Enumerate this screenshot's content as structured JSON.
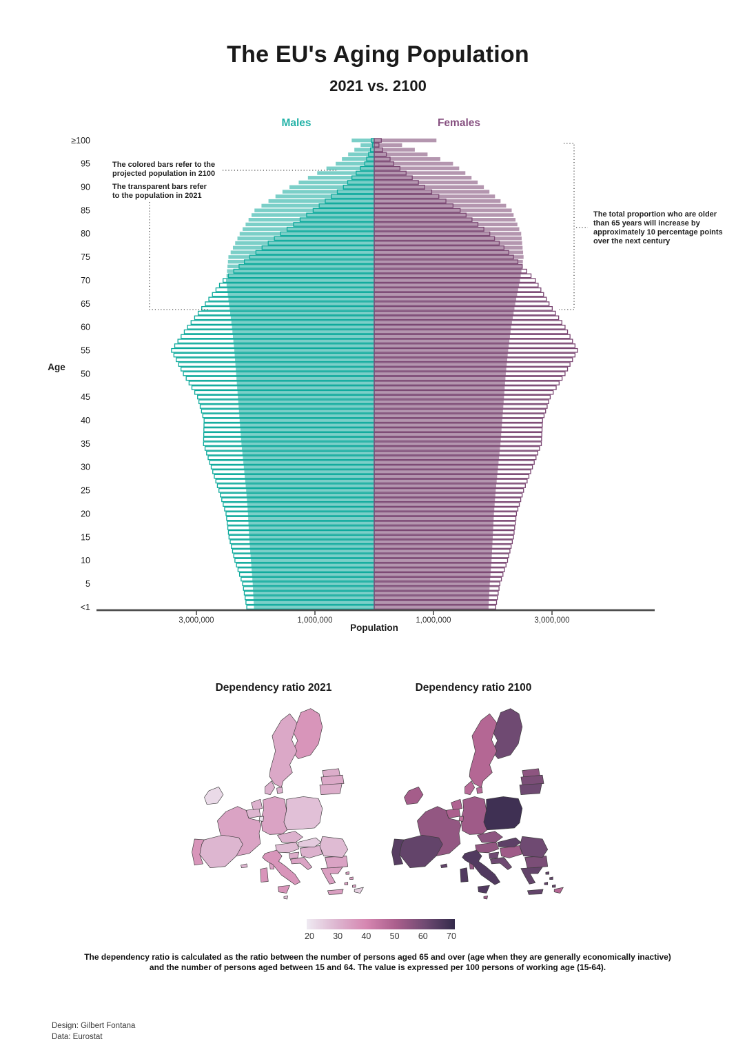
{
  "title": "The EU's Aging Population",
  "subtitle": "2021 vs. 2100",
  "pyramid": {
    "males_label": "Males",
    "females_label": "Females",
    "age_axis_label": "Age",
    "x_axis_label": "Population",
    "age_tick_labels": [
      "≥100",
      "95",
      "90",
      "85",
      "80",
      "75",
      "70",
      "65",
      "60",
      "55",
      "50",
      "45",
      "40",
      "35",
      "30",
      "25",
      "20",
      "15",
      "10",
      "5",
      "<1"
    ],
    "x_tick_labels": [
      "3,000,000",
      "1,000,000",
      "1,000,000",
      "3,000,000"
    ],
    "annotation_colored": "The colored bars refer to the\nprojected population in 2100",
    "annotation_transparent": "The transparent bars refer\nto the population in 2021",
    "annotation_over65": "The total proportion who are older\nthan 65 years will increase by\napproximately 10 percentage points\nover the next century"
  },
  "maps": {
    "title_2021": "Dependency ratio 2021",
    "title_2100": "Dependency ratio 2100"
  },
  "legend": {
    "tick_labels": [
      "20",
      "30",
      "40",
      "50",
      "60",
      "70"
    ]
  },
  "footnote": "The dependency ratio is calculated as the ratio between the number of persons aged 65 and over (age when they are generally economically inactive)\nand the number of persons aged between 15 and 64. The value is expressed per 100 persons of working age (15-64).",
  "credits": {
    "design": "Design: Gilbert Fontana",
    "data": "Data: Eurostat"
  },
  "colors": {
    "male_accent": "#23b2a7",
    "male_outline": "#0ba99b",
    "male_fill": "rgba(14,168,155,0.55)",
    "female_accent": "#865080",
    "female_outline": "#7a4672",
    "female_fill": "rgba(125,74,117,0.58)",
    "axis": "#4d4d4d",
    "annotation_line": "#444444",
    "colorbar_stops": [
      {
        "value": 20,
        "color": "#efeaf2"
      },
      {
        "value": 30,
        "color": "#ddb6d0"
      },
      {
        "value": 40,
        "color": "#d687b1"
      },
      {
        "value": 50,
        "color": "#ab5f8d"
      },
      {
        "value": 60,
        "color": "#6f4a72"
      },
      {
        "value": 70,
        "color": "#332a4b"
      }
    ]
  },
  "chart_data": [
    {
      "type": "bar",
      "subtype": "population_pyramid",
      "title": "EU population by single year of age and sex, 2021 vs. projected 2100",
      "unit": "persons (millions), read from axis where 1 tick = 1,000,000",
      "xlabel": "Population",
      "ylabel": "Age",
      "x_ticks_millions": [
        -3,
        -1,
        1,
        3
      ],
      "age_range": [
        "<1",
        "≥100 (open-ended top bin)"
      ],
      "age_anchors": [
        0,
        5,
        10,
        15,
        20,
        25,
        30,
        35,
        40,
        45,
        50,
        55,
        60,
        65,
        70,
        75,
        80,
        85,
        90,
        95,
        99,
        100
      ],
      "series": [
        {
          "name": "Males 2021",
          "side": "male",
          "year": 2021,
          "style": "outline",
          "values_millions": [
            2.15,
            2.22,
            2.35,
            2.45,
            2.5,
            2.62,
            2.75,
            2.88,
            2.87,
            2.98,
            3.22,
            3.42,
            3.15,
            2.85,
            2.55,
            2.1,
            1.58,
            1.03,
            0.52,
            0.16,
            0.03,
            0.05
          ]
        },
        {
          "name": "Males 2100",
          "side": "male",
          "year": 2100,
          "style": "fill",
          "values_millions": [
            2.03,
            2.05,
            2.08,
            2.11,
            2.13,
            2.16,
            2.2,
            2.24,
            2.27,
            2.3,
            2.33,
            2.36,
            2.4,
            2.45,
            2.5,
            2.46,
            2.27,
            2.02,
            1.43,
            0.65,
            0.23,
            0.38
          ]
        },
        {
          "name": "Females 2021",
          "side": "female",
          "year": 2021,
          "style": "outline",
          "values_millions": [
            2.05,
            2.12,
            2.25,
            2.35,
            2.4,
            2.52,
            2.67,
            2.82,
            2.84,
            2.97,
            3.22,
            3.43,
            3.22,
            2.95,
            2.72,
            2.35,
            1.95,
            1.45,
            0.85,
            0.33,
            0.08,
            0.12
          ]
        },
        {
          "name": "Females 2100",
          "side": "female",
          "year": 2100,
          "style": "fill",
          "values_millions": [
            1.93,
            1.95,
            1.98,
            2.0,
            2.02,
            2.05,
            2.09,
            2.13,
            2.16,
            2.19,
            2.22,
            2.26,
            2.31,
            2.38,
            2.46,
            2.52,
            2.48,
            2.32,
            1.85,
            1.33,
            0.47,
            1.05
          ]
        }
      ]
    },
    {
      "type": "choropleth",
      "titles": [
        "Dependency ratio 2021",
        "Dependency ratio 2100"
      ],
      "colorbar": {
        "ticks": [
          20,
          30,
          40,
          50,
          60,
          70
        ]
      },
      "countries": [
        {
          "code": "AT",
          "name": "Austria",
          "ratio_2021": 29,
          "ratio_2100": 54
        },
        {
          "code": "BE",
          "name": "Belgium",
          "ratio_2021": 30,
          "ratio_2100": 50
        },
        {
          "code": "BG",
          "name": "Bulgaria",
          "ratio_2021": 34,
          "ratio_2100": 58
        },
        {
          "code": "HR",
          "name": "Croatia",
          "ratio_2021": 34,
          "ratio_2100": 60
        },
        {
          "code": "CY",
          "name": "Cyprus",
          "ratio_2021": 25,
          "ratio_2100": 48
        },
        {
          "code": "CZ",
          "name": "Czechia",
          "ratio_2021": 31,
          "ratio_2100": 55
        },
        {
          "code": "DK",
          "name": "Denmark",
          "ratio_2021": 31,
          "ratio_2100": 47
        },
        {
          "code": "EE",
          "name": "Estonia",
          "ratio_2021": 32,
          "ratio_2100": 55
        },
        {
          "code": "FI",
          "name": "Finland",
          "ratio_2021": 37,
          "ratio_2100": 60
        },
        {
          "code": "FR",
          "name": "France",
          "ratio_2021": 34,
          "ratio_2100": 54
        },
        {
          "code": "DE",
          "name": "Germany",
          "ratio_2021": 34,
          "ratio_2100": 52
        },
        {
          "code": "EL",
          "name": "Greece",
          "ratio_2021": 35,
          "ratio_2100": 62
        },
        {
          "code": "HU",
          "name": "Hungary",
          "ratio_2021": 31,
          "ratio_2100": 52
        },
        {
          "code": "IE",
          "name": "Ireland",
          "ratio_2021": 23,
          "ratio_2100": 51
        },
        {
          "code": "IT",
          "name": "Italy",
          "ratio_2021": 37,
          "ratio_2100": 65
        },
        {
          "code": "LV",
          "name": "Latvia",
          "ratio_2021": 33,
          "ratio_2100": 58
        },
        {
          "code": "LT",
          "name": "Lithuania",
          "ratio_2021": 32,
          "ratio_2100": 60
        },
        {
          "code": "LU",
          "name": "Luxembourg",
          "ratio_2021": 21,
          "ratio_2100": 45
        },
        {
          "code": "MT",
          "name": "Malta",
          "ratio_2021": 28,
          "ratio_2100": 52
        },
        {
          "code": "NL",
          "name": "Netherlands",
          "ratio_2021": 31,
          "ratio_2100": 49
        },
        {
          "code": "PL",
          "name": "Poland",
          "ratio_2021": 28,
          "ratio_2100": 68
        },
        {
          "code": "PT",
          "name": "Portugal",
          "ratio_2021": 37,
          "ratio_2100": 64
        },
        {
          "code": "RO",
          "name": "Romania",
          "ratio_2021": 29,
          "ratio_2100": 60
        },
        {
          "code": "SK",
          "name": "Slovakia",
          "ratio_2021": 26,
          "ratio_2100": 63
        },
        {
          "code": "SI",
          "name": "Slovenia",
          "ratio_2021": 32,
          "ratio_2100": 60
        },
        {
          "code": "ES",
          "name": "Spain",
          "ratio_2021": 30,
          "ratio_2100": 62
        },
        {
          "code": "SE",
          "name": "Sweden",
          "ratio_2021": 33,
          "ratio_2100": 48
        }
      ]
    }
  ]
}
